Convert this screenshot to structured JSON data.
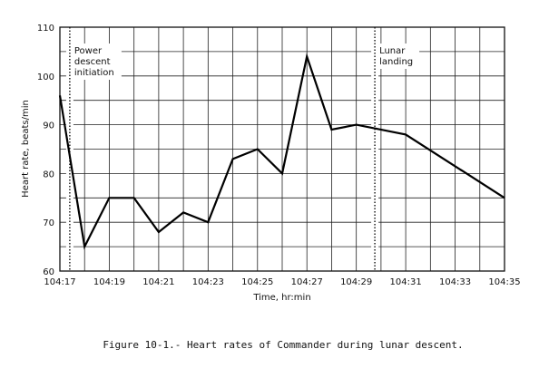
{
  "chart_data": {
    "type": "line",
    "title": "",
    "caption": "Figure 10-1.- Heart rates of Commander during lunar descent.",
    "xlabel": "Time, hr:min",
    "ylabel": "Heart rate, beats/min",
    "xlim": [
      "104:17",
      "104:35"
    ],
    "ylim": [
      60,
      110
    ],
    "grid": true,
    "x_ticks": [
      "104:17",
      "104:19",
      "104:21",
      "104:23",
      "104:25",
      "104:27",
      "104:29",
      "104:31",
      "104:33",
      "104:35"
    ],
    "y_ticks": [
      60,
      70,
      80,
      90,
      100,
      110
    ],
    "series": [
      {
        "points": [
          {
            "x": "104:17",
            "y": 96
          },
          {
            "x": "104:18",
            "y": 65
          },
          {
            "x": "104:19",
            "y": 75
          },
          {
            "x": "104:20",
            "y": 75
          },
          {
            "x": "104:21",
            "y": 68
          },
          {
            "x": "104:22",
            "y": 72
          },
          {
            "x": "104:23",
            "y": 70
          },
          {
            "x": "104:24",
            "y": 83
          },
          {
            "x": "104:25",
            "y": 85
          },
          {
            "x": "104:26",
            "y": 80
          },
          {
            "x": "104:27",
            "y": 104
          },
          {
            "x": "104:28",
            "y": 89
          },
          {
            "x": "104:29",
            "y": 90
          },
          {
            "x": "104:31",
            "y": 88
          },
          {
            "x": "104:35",
            "y": 75
          }
        ]
      }
    ],
    "annotations": [
      {
        "id": "power",
        "lines": [
          "Power",
          "descent",
          "initiation"
        ],
        "x": "104:17.4"
      },
      {
        "id": "landing",
        "lines": [
          "Lunar",
          "landing"
        ],
        "x": "104:29.75"
      }
    ]
  }
}
